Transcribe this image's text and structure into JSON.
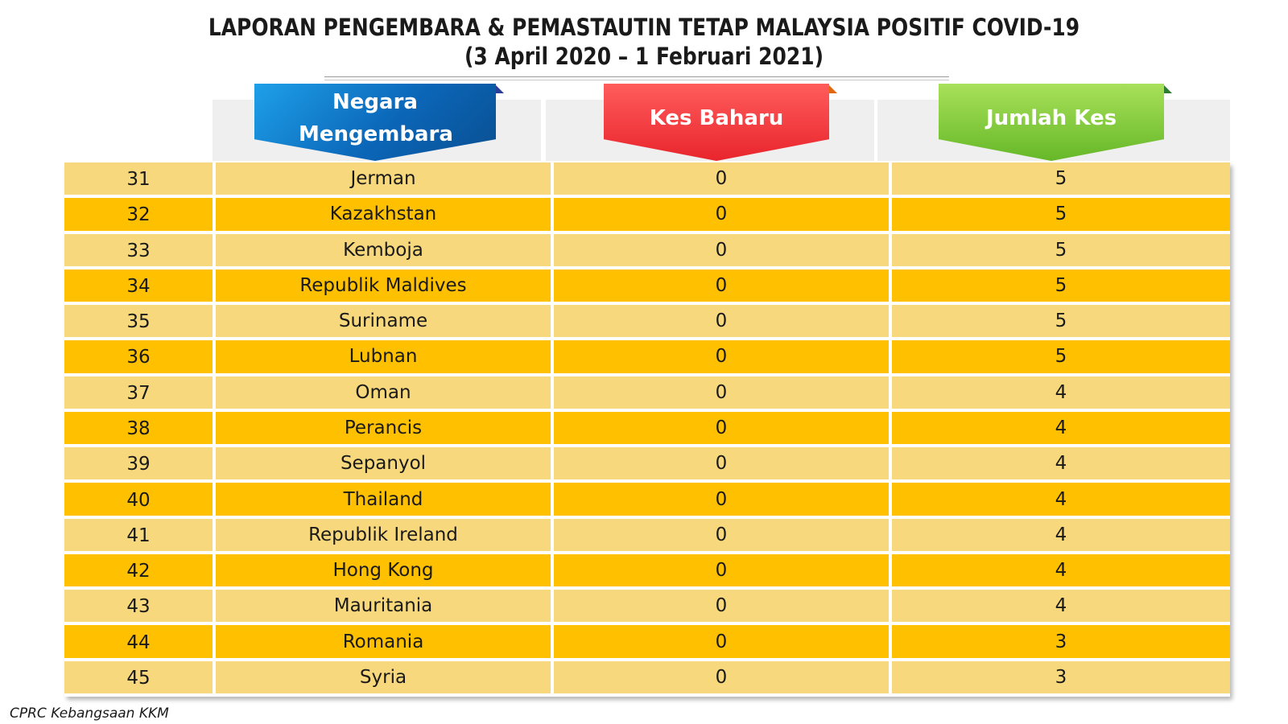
{
  "title": {
    "line1": "LAPORAN PENGEMBARA & PEMASTAUTIN TETAP MALAYSIA POSITIF COVID-19",
    "line2": "(3 April 2020 –  1 Februari 2021)"
  },
  "headers": {
    "country": "Negara Mengembara",
    "new_cases": "Kes Baharu",
    "total_cases": "Jumlah Kes"
  },
  "colors": {
    "row_light": "#f7d87c",
    "row_dark": "#ffc000",
    "header_blue": "#0b66b8",
    "header_red": "#e8252c",
    "header_green": "#66b828"
  },
  "rows": [
    {
      "no": "31",
      "country": "Jerman",
      "new": "0",
      "total": "5"
    },
    {
      "no": "32",
      "country": "Kazakhstan",
      "new": "0",
      "total": "5"
    },
    {
      "no": "33",
      "country": "Kemboja",
      "new": "0",
      "total": "5"
    },
    {
      "no": "34",
      "country": "Republik Maldives",
      "new": "0",
      "total": "5"
    },
    {
      "no": "35",
      "country": "Suriname",
      "new": "0",
      "total": "5"
    },
    {
      "no": "36",
      "country": "Lubnan",
      "new": "0",
      "total": "5"
    },
    {
      "no": "37",
      "country": "Oman",
      "new": "0",
      "total": "4"
    },
    {
      "no": "38",
      "country": "Perancis",
      "new": "0",
      "total": "4"
    },
    {
      "no": "39",
      "country": "Sepanyol",
      "new": "0",
      "total": "4"
    },
    {
      "no": "40",
      "country": "Thailand",
      "new": "0",
      "total": "4"
    },
    {
      "no": "41",
      "country": "Republik Ireland",
      "new": "0",
      "total": "4"
    },
    {
      "no": "42",
      "country": "Hong Kong",
      "new": "0",
      "total": "4"
    },
    {
      "no": "43",
      "country": "Mauritania",
      "new": "0",
      "total": "4"
    },
    {
      "no": "44",
      "country": "Romania",
      "new": "0",
      "total": "3"
    },
    {
      "no": "45",
      "country": "Syria",
      "new": "0",
      "total": "3"
    }
  ],
  "footer": "CPRC Kebangsaan KKM"
}
